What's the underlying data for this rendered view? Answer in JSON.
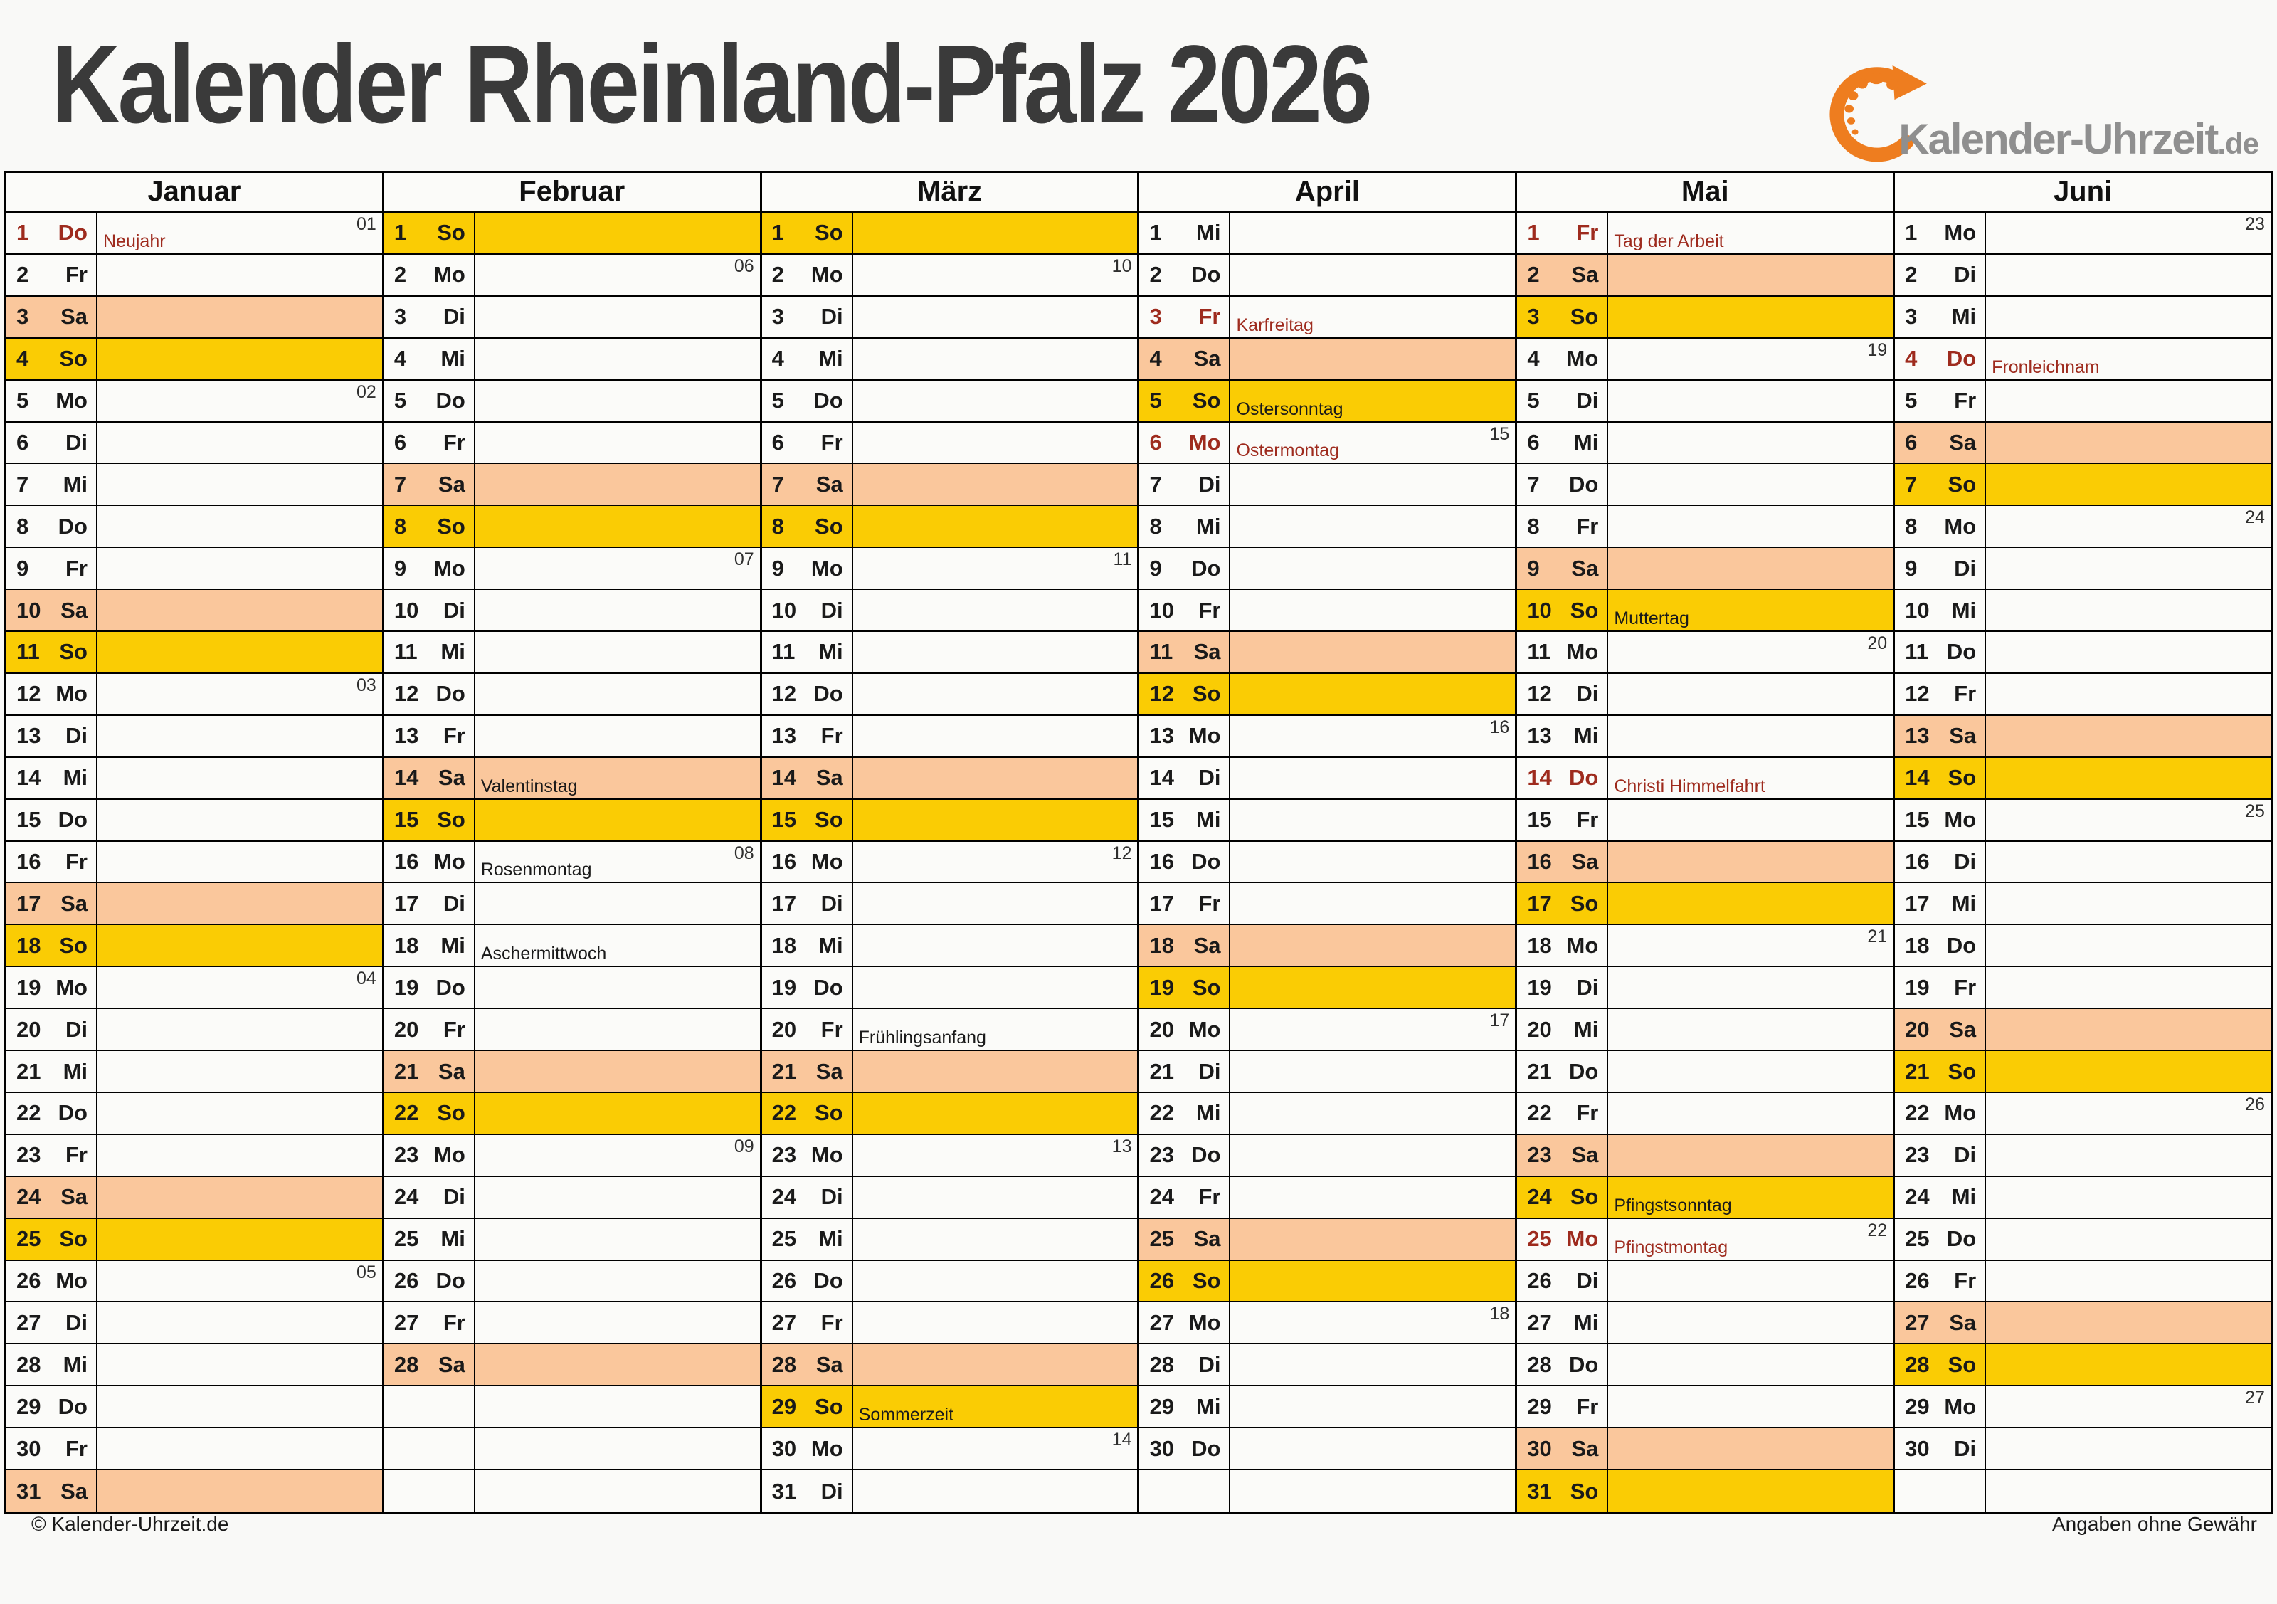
{
  "title": "Kalender Rheinland-Pfalz 2026",
  "logo": {
    "text": "Kalender-Uhrzeit",
    "tld": ".de"
  },
  "footer": {
    "left": "© Kalender-Uhrzeit.de",
    "right": "Angaben ohne Gewähr"
  },
  "colors": {
    "saturday_bg": "#FAC79C",
    "sunday_bg": "#FACC04",
    "holiday_red": "#9E2B1E",
    "page_bg": "#F9F9F7",
    "logo_orange": "#EE7D1F",
    "logo_gray": "#8F8F8F",
    "title_gray": "#3A3A3A"
  },
  "months": [
    {
      "name": "Januar",
      "days": [
        {
          "d": 1,
          "w": "Do",
          "t": "w",
          "r": true,
          "l": "Neujahr",
          "k": "01"
        },
        {
          "d": 2,
          "w": "Fr",
          "t": "w"
        },
        {
          "d": 3,
          "w": "Sa",
          "t": "sa"
        },
        {
          "d": 4,
          "w": "So",
          "t": "su"
        },
        {
          "d": 5,
          "w": "Mo",
          "t": "w",
          "k": "02"
        },
        {
          "d": 6,
          "w": "Di",
          "t": "w"
        },
        {
          "d": 7,
          "w": "Mi",
          "t": "w"
        },
        {
          "d": 8,
          "w": "Do",
          "t": "w"
        },
        {
          "d": 9,
          "w": "Fr",
          "t": "w"
        },
        {
          "d": 10,
          "w": "Sa",
          "t": "sa"
        },
        {
          "d": 11,
          "w": "So",
          "t": "su"
        },
        {
          "d": 12,
          "w": "Mo",
          "t": "w",
          "k": "03"
        },
        {
          "d": 13,
          "w": "Di",
          "t": "w"
        },
        {
          "d": 14,
          "w": "Mi",
          "t": "w"
        },
        {
          "d": 15,
          "w": "Do",
          "t": "w"
        },
        {
          "d": 16,
          "w": "Fr",
          "t": "w"
        },
        {
          "d": 17,
          "w": "Sa",
          "t": "sa"
        },
        {
          "d": 18,
          "w": "So",
          "t": "su"
        },
        {
          "d": 19,
          "w": "Mo",
          "t": "w",
          "k": "04"
        },
        {
          "d": 20,
          "w": "Di",
          "t": "w"
        },
        {
          "d": 21,
          "w": "Mi",
          "t": "w"
        },
        {
          "d": 22,
          "w": "Do",
          "t": "w"
        },
        {
          "d": 23,
          "w": "Fr",
          "t": "w"
        },
        {
          "d": 24,
          "w": "Sa",
          "t": "sa"
        },
        {
          "d": 25,
          "w": "So",
          "t": "su"
        },
        {
          "d": 26,
          "w": "Mo",
          "t": "w",
          "k": "05"
        },
        {
          "d": 27,
          "w": "Di",
          "t": "w"
        },
        {
          "d": 28,
          "w": "Mi",
          "t": "w"
        },
        {
          "d": 29,
          "w": "Do",
          "t": "w"
        },
        {
          "d": 30,
          "w": "Fr",
          "t": "w"
        },
        {
          "d": 31,
          "w": "Sa",
          "t": "sa"
        }
      ]
    },
    {
      "name": "Februar",
      "days": [
        {
          "d": 1,
          "w": "So",
          "t": "su"
        },
        {
          "d": 2,
          "w": "Mo",
          "t": "w",
          "k": "06"
        },
        {
          "d": 3,
          "w": "Di",
          "t": "w"
        },
        {
          "d": 4,
          "w": "Mi",
          "t": "w"
        },
        {
          "d": 5,
          "w": "Do",
          "t": "w"
        },
        {
          "d": 6,
          "w": "Fr",
          "t": "w"
        },
        {
          "d": 7,
          "w": "Sa",
          "t": "sa"
        },
        {
          "d": 8,
          "w": "So",
          "t": "su"
        },
        {
          "d": 9,
          "w": "Mo",
          "t": "w",
          "k": "07"
        },
        {
          "d": 10,
          "w": "Di",
          "t": "w"
        },
        {
          "d": 11,
          "w": "Mi",
          "t": "w"
        },
        {
          "d": 12,
          "w": "Do",
          "t": "w"
        },
        {
          "d": 13,
          "w": "Fr",
          "t": "w"
        },
        {
          "d": 14,
          "w": "Sa",
          "t": "sa",
          "l": "Valentinstag"
        },
        {
          "d": 15,
          "w": "So",
          "t": "su"
        },
        {
          "d": 16,
          "w": "Mo",
          "t": "w",
          "k": "08",
          "l": "Rosenmontag"
        },
        {
          "d": 17,
          "w": "Di",
          "t": "w"
        },
        {
          "d": 18,
          "w": "Mi",
          "t": "w",
          "l": "Aschermittwoch"
        },
        {
          "d": 19,
          "w": "Do",
          "t": "w"
        },
        {
          "d": 20,
          "w": "Fr",
          "t": "w"
        },
        {
          "d": 21,
          "w": "Sa",
          "t": "sa"
        },
        {
          "d": 22,
          "w": "So",
          "t": "su"
        },
        {
          "d": 23,
          "w": "Mo",
          "t": "w",
          "k": "09"
        },
        {
          "d": 24,
          "w": "Di",
          "t": "w"
        },
        {
          "d": 25,
          "w": "Mi",
          "t": "w"
        },
        {
          "d": 26,
          "w": "Do",
          "t": "w"
        },
        {
          "d": 27,
          "w": "Fr",
          "t": "w"
        },
        {
          "d": 28,
          "w": "Sa",
          "t": "sa"
        },
        null,
        null,
        null
      ]
    },
    {
      "name": "März",
      "days": [
        {
          "d": 1,
          "w": "So",
          "t": "su"
        },
        {
          "d": 2,
          "w": "Mo",
          "t": "w",
          "k": "10"
        },
        {
          "d": 3,
          "w": "Di",
          "t": "w"
        },
        {
          "d": 4,
          "w": "Mi",
          "t": "w"
        },
        {
          "d": 5,
          "w": "Do",
          "t": "w"
        },
        {
          "d": 6,
          "w": "Fr",
          "t": "w"
        },
        {
          "d": 7,
          "w": "Sa",
          "t": "sa"
        },
        {
          "d": 8,
          "w": "So",
          "t": "su"
        },
        {
          "d": 9,
          "w": "Mo",
          "t": "w",
          "k": "11"
        },
        {
          "d": 10,
          "w": "Di",
          "t": "w"
        },
        {
          "d": 11,
          "w": "Mi",
          "t": "w"
        },
        {
          "d": 12,
          "w": "Do",
          "t": "w"
        },
        {
          "d": 13,
          "w": "Fr",
          "t": "w"
        },
        {
          "d": 14,
          "w": "Sa",
          "t": "sa"
        },
        {
          "d": 15,
          "w": "So",
          "t": "su"
        },
        {
          "d": 16,
          "w": "Mo",
          "t": "w",
          "k": "12"
        },
        {
          "d": 17,
          "w": "Di",
          "t": "w"
        },
        {
          "d": 18,
          "w": "Mi",
          "t": "w"
        },
        {
          "d": 19,
          "w": "Do",
          "t": "w"
        },
        {
          "d": 20,
          "w": "Fr",
          "t": "w",
          "l": "Frühlingsanfang"
        },
        {
          "d": 21,
          "w": "Sa",
          "t": "sa"
        },
        {
          "d": 22,
          "w": "So",
          "t": "su"
        },
        {
          "d": 23,
          "w": "Mo",
          "t": "w",
          "k": "13"
        },
        {
          "d": 24,
          "w": "Di",
          "t": "w"
        },
        {
          "d": 25,
          "w": "Mi",
          "t": "w"
        },
        {
          "d": 26,
          "w": "Do",
          "t": "w"
        },
        {
          "d": 27,
          "w": "Fr",
          "t": "w"
        },
        {
          "d": 28,
          "w": "Sa",
          "t": "sa"
        },
        {
          "d": 29,
          "w": "So",
          "t": "su",
          "l": "Sommerzeit"
        },
        {
          "d": 30,
          "w": "Mo",
          "t": "w",
          "k": "14"
        },
        {
          "d": 31,
          "w": "Di",
          "t": "w"
        }
      ]
    },
    {
      "name": "April",
      "days": [
        {
          "d": 1,
          "w": "Mi",
          "t": "w"
        },
        {
          "d": 2,
          "w": "Do",
          "t": "w"
        },
        {
          "d": 3,
          "w": "Fr",
          "t": "w",
          "r": true,
          "l": "Karfreitag"
        },
        {
          "d": 4,
          "w": "Sa",
          "t": "sa"
        },
        {
          "d": 5,
          "w": "So",
          "t": "su",
          "l": "Ostersonntag"
        },
        {
          "d": 6,
          "w": "Mo",
          "t": "w",
          "r": true,
          "k": "15",
          "l": "Ostermontag"
        },
        {
          "d": 7,
          "w": "Di",
          "t": "w"
        },
        {
          "d": 8,
          "w": "Mi",
          "t": "w"
        },
        {
          "d": 9,
          "w": "Do",
          "t": "w"
        },
        {
          "d": 10,
          "w": "Fr",
          "t": "w"
        },
        {
          "d": 11,
          "w": "Sa",
          "t": "sa"
        },
        {
          "d": 12,
          "w": "So",
          "t": "su"
        },
        {
          "d": 13,
          "w": "Mo",
          "t": "w",
          "k": "16"
        },
        {
          "d": 14,
          "w": "Di",
          "t": "w"
        },
        {
          "d": 15,
          "w": "Mi",
          "t": "w"
        },
        {
          "d": 16,
          "w": "Do",
          "t": "w"
        },
        {
          "d": 17,
          "w": "Fr",
          "t": "w"
        },
        {
          "d": 18,
          "w": "Sa",
          "t": "sa"
        },
        {
          "d": 19,
          "w": "So",
          "t": "su"
        },
        {
          "d": 20,
          "w": "Mo",
          "t": "w",
          "k": "17"
        },
        {
          "d": 21,
          "w": "Di",
          "t": "w"
        },
        {
          "d": 22,
          "w": "Mi",
          "t": "w"
        },
        {
          "d": 23,
          "w": "Do",
          "t": "w"
        },
        {
          "d": 24,
          "w": "Fr",
          "t": "w"
        },
        {
          "d": 25,
          "w": "Sa",
          "t": "sa"
        },
        {
          "d": 26,
          "w": "So",
          "t": "su"
        },
        {
          "d": 27,
          "w": "Mo",
          "t": "w",
          "k": "18"
        },
        {
          "d": 28,
          "w": "Di",
          "t": "w"
        },
        {
          "d": 29,
          "w": "Mi",
          "t": "w"
        },
        {
          "d": 30,
          "w": "Do",
          "t": "w"
        },
        null
      ]
    },
    {
      "name": "Mai",
      "days": [
        {
          "d": 1,
          "w": "Fr",
          "t": "w",
          "r": true,
          "l": "Tag der Arbeit"
        },
        {
          "d": 2,
          "w": "Sa",
          "t": "sa"
        },
        {
          "d": 3,
          "w": "So",
          "t": "su"
        },
        {
          "d": 4,
          "w": "Mo",
          "t": "w",
          "k": "19"
        },
        {
          "d": 5,
          "w": "Di",
          "t": "w"
        },
        {
          "d": 6,
          "w": "Mi",
          "t": "w"
        },
        {
          "d": 7,
          "w": "Do",
          "t": "w"
        },
        {
          "d": 8,
          "w": "Fr",
          "t": "w"
        },
        {
          "d": 9,
          "w": "Sa",
          "t": "sa"
        },
        {
          "d": 10,
          "w": "So",
          "t": "su",
          "l": "Muttertag"
        },
        {
          "d": 11,
          "w": "Mo",
          "t": "w",
          "k": "20"
        },
        {
          "d": 12,
          "w": "Di",
          "t": "w"
        },
        {
          "d": 13,
          "w": "Mi",
          "t": "w"
        },
        {
          "d": 14,
          "w": "Do",
          "t": "w",
          "r": true,
          "l": "Christi Himmelfahrt"
        },
        {
          "d": 15,
          "w": "Fr",
          "t": "w"
        },
        {
          "d": 16,
          "w": "Sa",
          "t": "sa"
        },
        {
          "d": 17,
          "w": "So",
          "t": "su"
        },
        {
          "d": 18,
          "w": "Mo",
          "t": "w",
          "k": "21"
        },
        {
          "d": 19,
          "w": "Di",
          "t": "w"
        },
        {
          "d": 20,
          "w": "Mi",
          "t": "w"
        },
        {
          "d": 21,
          "w": "Do",
          "t": "w"
        },
        {
          "d": 22,
          "w": "Fr",
          "t": "w"
        },
        {
          "d": 23,
          "w": "Sa",
          "t": "sa"
        },
        {
          "d": 24,
          "w": "So",
          "t": "su",
          "l": "Pfingstsonntag"
        },
        {
          "d": 25,
          "w": "Mo",
          "t": "w",
          "r": true,
          "k": "22",
          "l": "Pfingstmontag"
        },
        {
          "d": 26,
          "w": "Di",
          "t": "w"
        },
        {
          "d": 27,
          "w": "Mi",
          "t": "w"
        },
        {
          "d": 28,
          "w": "Do",
          "t": "w"
        },
        {
          "d": 29,
          "w": "Fr",
          "t": "w"
        },
        {
          "d": 30,
          "w": "Sa",
          "t": "sa"
        },
        {
          "d": 31,
          "w": "So",
          "t": "su"
        }
      ]
    },
    {
      "name": "Juni",
      "days": [
        {
          "d": 1,
          "w": "Mo",
          "t": "w",
          "k": "23"
        },
        {
          "d": 2,
          "w": "Di",
          "t": "w"
        },
        {
          "d": 3,
          "w": "Mi",
          "t": "w"
        },
        {
          "d": 4,
          "w": "Do",
          "t": "w",
          "r": true,
          "l": "Fronleichnam"
        },
        {
          "d": 5,
          "w": "Fr",
          "t": "w"
        },
        {
          "d": 6,
          "w": "Sa",
          "t": "sa"
        },
        {
          "d": 7,
          "w": "So",
          "t": "su"
        },
        {
          "d": 8,
          "w": "Mo",
          "t": "w",
          "k": "24"
        },
        {
          "d": 9,
          "w": "Di",
          "t": "w"
        },
        {
          "d": 10,
          "w": "Mi",
          "t": "w"
        },
        {
          "d": 11,
          "w": "Do",
          "t": "w"
        },
        {
          "d": 12,
          "w": "Fr",
          "t": "w"
        },
        {
          "d": 13,
          "w": "Sa",
          "t": "sa"
        },
        {
          "d": 14,
          "w": "So",
          "t": "su"
        },
        {
          "d": 15,
          "w": "Mo",
          "t": "w",
          "k": "25"
        },
        {
          "d": 16,
          "w": "Di",
          "t": "w"
        },
        {
          "d": 17,
          "w": "Mi",
          "t": "w"
        },
        {
          "d": 18,
          "w": "Do",
          "t": "w"
        },
        {
          "d": 19,
          "w": "Fr",
          "t": "w"
        },
        {
          "d": 20,
          "w": "Sa",
          "t": "sa"
        },
        {
          "d": 21,
          "w": "So",
          "t": "su"
        },
        {
          "d": 22,
          "w": "Mo",
          "t": "w",
          "k": "26"
        },
        {
          "d": 23,
          "w": "Di",
          "t": "w"
        },
        {
          "d": 24,
          "w": "Mi",
          "t": "w"
        },
        {
          "d": 25,
          "w": "Do",
          "t": "w"
        },
        {
          "d": 26,
          "w": "Fr",
          "t": "w"
        },
        {
          "d": 27,
          "w": "Sa",
          "t": "sa"
        },
        {
          "d": 28,
          "w": "So",
          "t": "su"
        },
        {
          "d": 29,
          "w": "Mo",
          "t": "w",
          "k": "27"
        },
        {
          "d": 30,
          "w": "Di",
          "t": "w"
        },
        null
      ]
    }
  ]
}
